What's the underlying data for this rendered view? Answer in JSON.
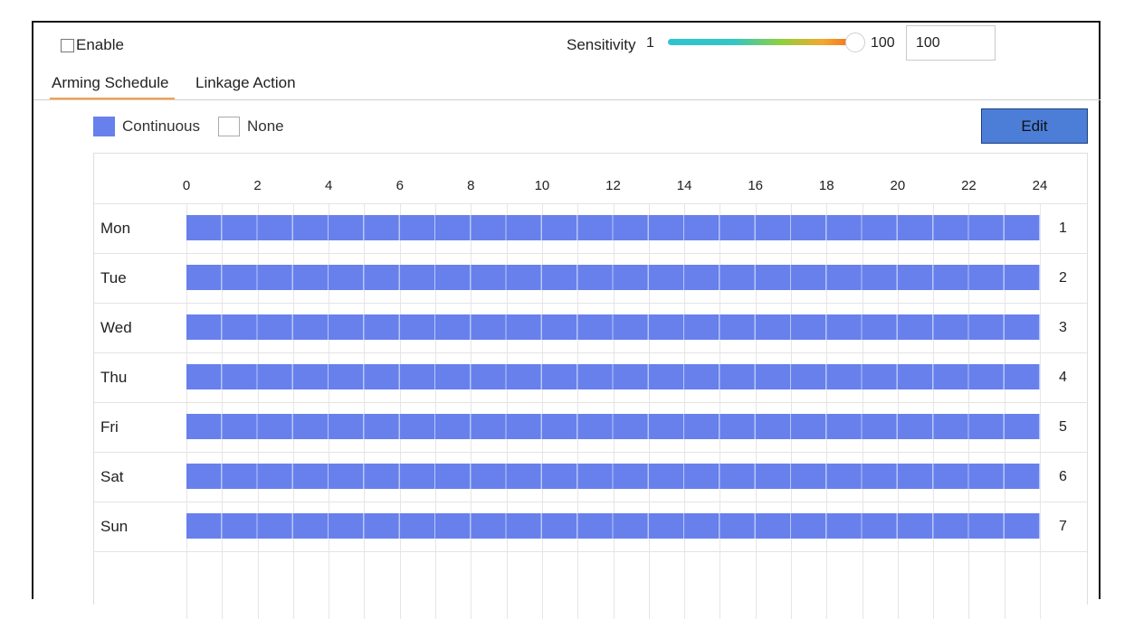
{
  "enable": {
    "label": "Enable",
    "checked": false
  },
  "sensitivity": {
    "label": "Sensitivity",
    "min_label": "1",
    "max_label": "100",
    "value": "100",
    "level": 100
  },
  "tabs": [
    {
      "label": "Arming Schedule",
      "active": true
    },
    {
      "label": "Linkage Action",
      "active": false
    }
  ],
  "legend": [
    {
      "label": "Continuous",
      "color": "#6780ec"
    },
    {
      "label": "None",
      "color": "#ffffff"
    }
  ],
  "edit_button": {
    "label": "Edit",
    "color": "#4c7ed8"
  },
  "schedule": {
    "hours": [
      "0",
      "2",
      "4",
      "6",
      "8",
      "10",
      "12",
      "14",
      "16",
      "18",
      "20",
      "22",
      "24"
    ],
    "days": [
      {
        "day": "Mon",
        "num": "1",
        "mode": "Continuous",
        "start": 0,
        "end": 24
      },
      {
        "day": "Tue",
        "num": "2",
        "mode": "Continuous",
        "start": 0,
        "end": 24
      },
      {
        "day": "Wed",
        "num": "3",
        "mode": "Continuous",
        "start": 0,
        "end": 24
      },
      {
        "day": "Thu",
        "num": "4",
        "mode": "Continuous",
        "start": 0,
        "end": 24
      },
      {
        "day": "Fri",
        "num": "5",
        "mode": "Continuous",
        "start": 0,
        "end": 24
      },
      {
        "day": "Sat",
        "num": "6",
        "mode": "Continuous",
        "start": 0,
        "end": 24
      },
      {
        "day": "Sun",
        "num": "7",
        "mode": "Continuous",
        "start": 0,
        "end": 24
      }
    ]
  }
}
